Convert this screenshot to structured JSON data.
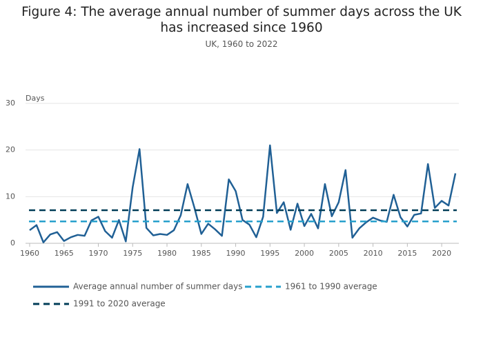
{
  "chart_data": {
    "type": "line",
    "title": "Figure 4: The average annual number of summer days across the UK has increased since 1960",
    "subtitle": "UK, 1960 to 2022",
    "y_label": "Days",
    "x": [
      1960,
      1961,
      1962,
      1963,
      1964,
      1965,
      1966,
      1967,
      1968,
      1969,
      1970,
      1971,
      1972,
      1973,
      1974,
      1975,
      1976,
      1977,
      1978,
      1979,
      1980,
      1981,
      1982,
      1983,
      1984,
      1985,
      1986,
      1987,
      1988,
      1989,
      1990,
      1991,
      1992,
      1993,
      1994,
      1995,
      1996,
      1997,
      1998,
      1999,
      2000,
      2001,
      2002,
      2003,
      2004,
      2005,
      2006,
      2007,
      2008,
      2009,
      2010,
      2011,
      2012,
      2013,
      2014,
      2015,
      2016,
      2017,
      2018,
      2019,
      2020,
      2021,
      2022
    ],
    "series": [
      {
        "name": "Average annual number of summer days",
        "color": "#206095",
        "values": [
          2.8,
          3.9,
          0.2,
          1.9,
          2.4,
          0.5,
          1.3,
          1.8,
          1.6,
          4.9,
          5.7,
          2.6,
          1.2,
          5.0,
          0.4,
          12.0,
          20.2,
          3.3,
          1.7,
          2.0,
          1.8,
          2.8,
          6.0,
          12.7,
          7.6,
          2.0,
          4.2,
          3.0,
          1.6,
          13.7,
          11.2,
          5.0,
          4.0,
          1.3,
          5.7,
          21.0,
          6.5,
          8.8,
          2.9,
          8.5,
          3.7,
          6.3,
          3.2,
          12.7,
          5.8,
          8.8,
          15.7,
          1.2,
          3.2,
          4.5,
          5.5,
          4.9,
          4.6,
          10.4,
          5.6,
          3.6,
          6.1,
          6.4,
          17.0,
          7.6,
          9.1,
          8.1,
          15.0
        ]
      },
      {
        "name": "1961 to 1990 average",
        "color": "#27a0cc",
        "dashed": true,
        "value": 4.7
      },
      {
        "name": "1991 to 2020 average",
        "color": "#003c57",
        "dashed": true,
        "value": 7.1
      }
    ],
    "xlim": [
      1959.4,
      2022.5
    ],
    "xticks": [
      1960,
      1965,
      1970,
      1975,
      1980,
      1985,
      1990,
      1995,
      2000,
      2005,
      2010,
      2015,
      2020
    ],
    "ylim": [
      0,
      30
    ],
    "yticks": [
      0,
      10,
      20,
      30
    ],
    "grid": true
  }
}
